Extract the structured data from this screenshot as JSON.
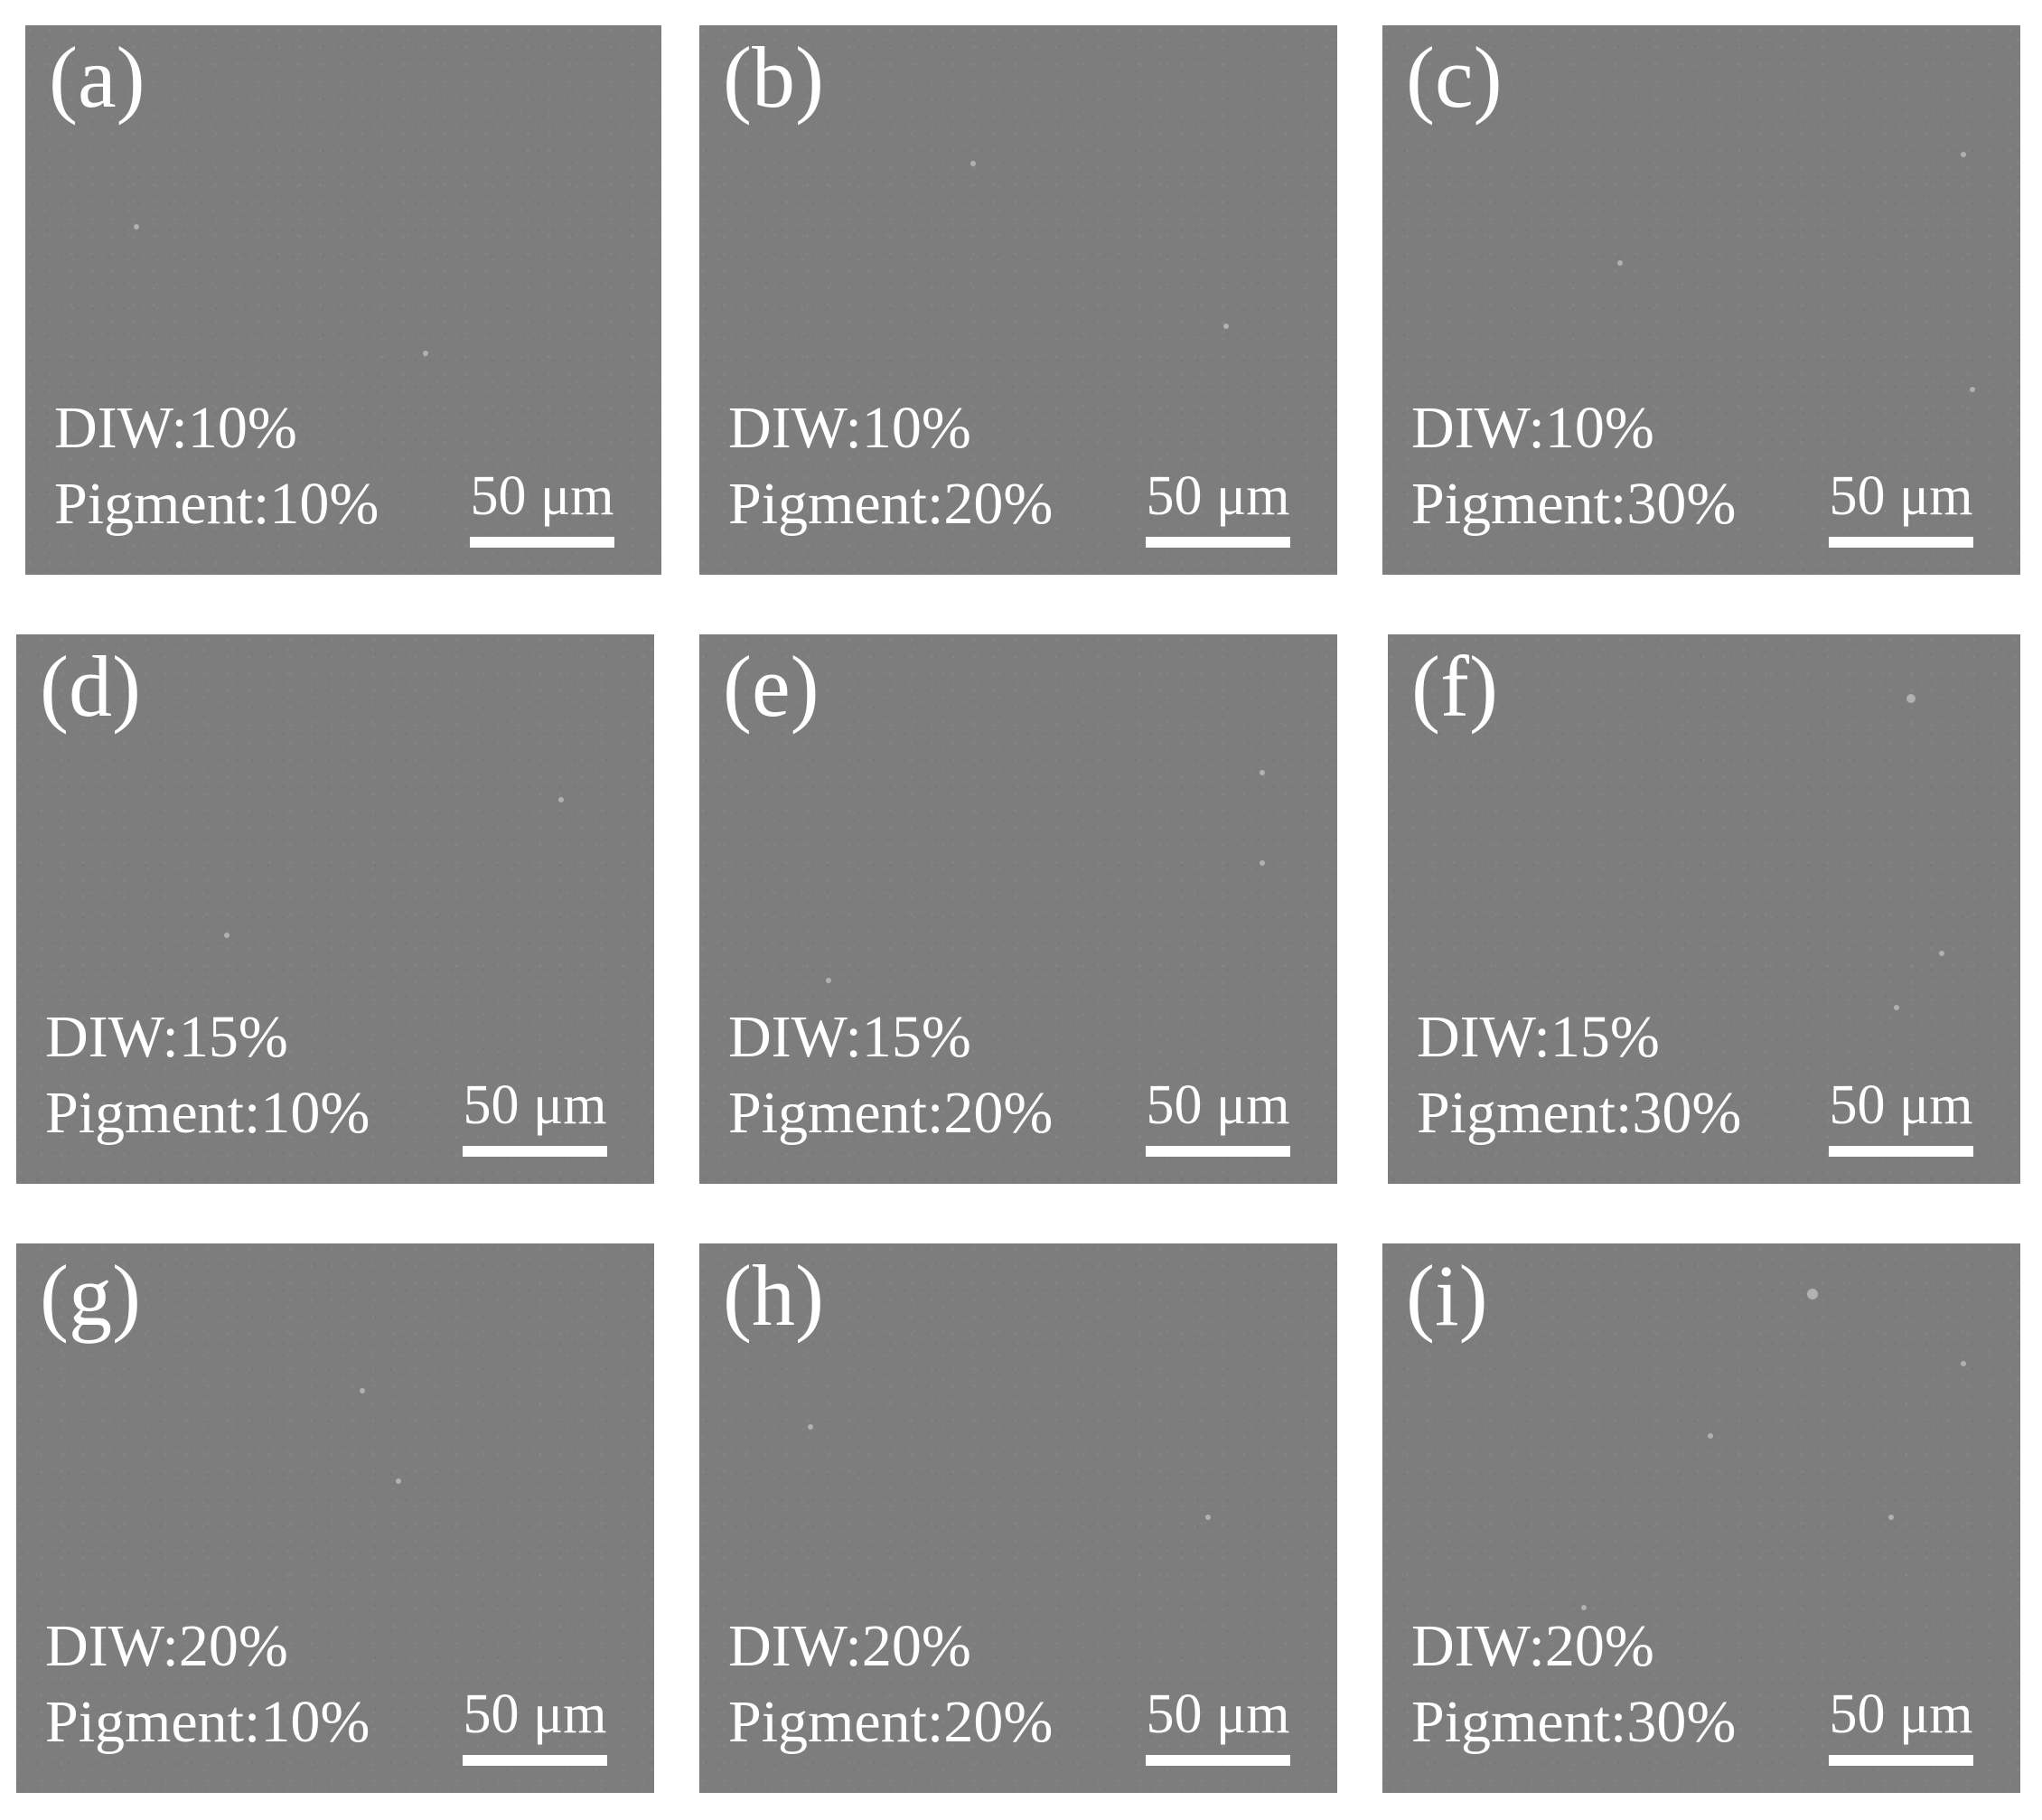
{
  "panels": [
    {
      "label": "(a)",
      "diw": "DIW:10%",
      "pigment": "Pigment:10%",
      "scale": "50 μm"
    },
    {
      "label": "(b)",
      "diw": "DIW:10%",
      "pigment": "Pigment:20%",
      "scale": "50 μm"
    },
    {
      "label": "(c)",
      "diw": "DIW:10%",
      "pigment": "Pigment:30%",
      "scale": "50 μm"
    },
    {
      "label": "(d)",
      "diw": "DIW:15%",
      "pigment": "Pigment:10%",
      "scale": "50 μm"
    },
    {
      "label": "(e)",
      "diw": "DIW:15%",
      "pigment": "Pigment:20%",
      "scale": "50 μm"
    },
    {
      "label": "(f)",
      "diw": "DIW:15%",
      "pigment": "Pigment:30%",
      "scale": "50 μm"
    },
    {
      "label": "(g)",
      "diw": "DIW:20%",
      "pigment": "Pigment:10%",
      "scale": "50 μm"
    },
    {
      "label": "(h)",
      "diw": "DIW:20%",
      "pigment": "Pigment:20%",
      "scale": "50 μm"
    },
    {
      "label": "(i)",
      "diw": "DIW:20%",
      "pigment": "Pigment:30%",
      "scale": "50 μm"
    }
  ]
}
